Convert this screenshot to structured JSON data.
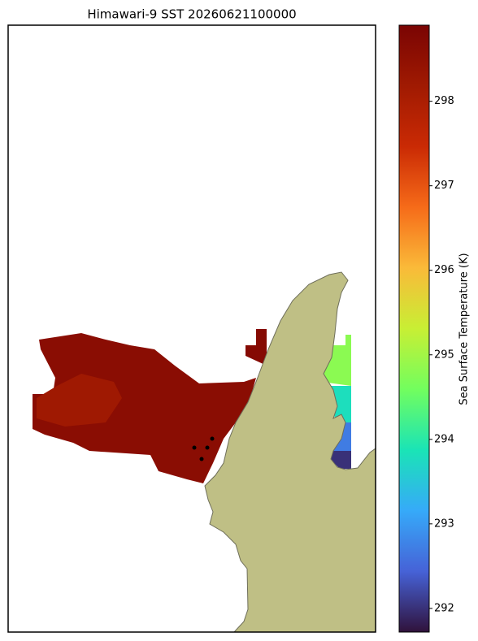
{
  "map": {
    "title": "Himawari-9 SST 20260621100000",
    "colormap": "turbo",
    "sst_values": [
      298.6,
      298.2,
      298.7,
      294.8,
      293.8,
      292.7,
      292.0
    ],
    "colorbar": {
      "label": "Sea Surface Temperature (K)",
      "lim": [
        291.72,
        298.9
      ],
      "ticks": [
        292,
        293,
        294,
        295,
        296,
        297,
        298
      ]
    }
  }
}
